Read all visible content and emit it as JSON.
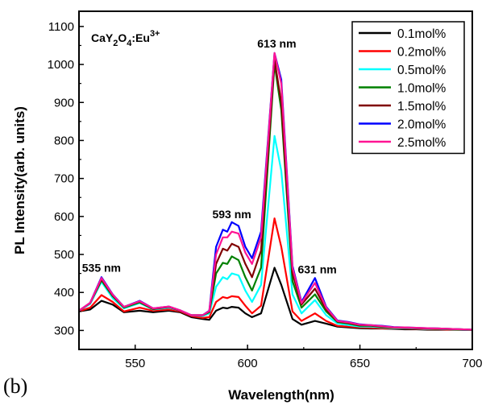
{
  "chart_data": {
    "type": "line",
    "panel_label": "(b)",
    "compound": {
      "parts": [
        "CaY",
        "2",
        "O",
        "4",
        ":Eu",
        "3+"
      ]
    },
    "xlabel": "Wavelength(nm)",
    "ylabel": "PL Intensity(arb. units)",
    "xlim": [
      525,
      700
    ],
    "ylim": [
      250,
      1140
    ],
    "xticks": [
      550,
      600,
      650,
      700
    ],
    "yticks": [
      300,
      400,
      500,
      600,
      700,
      800,
      900,
      1000,
      1100
    ],
    "grid": false,
    "legend_position": "top-right",
    "annotations": [
      {
        "text": "535 nm",
        "x": 535,
        "y": 455
      },
      {
        "text": "593 nm",
        "x": 593,
        "y": 595
      },
      {
        "text": "613 nm",
        "x": 613,
        "y": 1045
      },
      {
        "text": "631 nm",
        "x": 631,
        "y": 450
      }
    ],
    "series": [
      {
        "name": "0.1mol%",
        "color": "#000000",
        "values": [
          350,
          355,
          378,
          368,
          348,
          352,
          348,
          352,
          348,
          335,
          330,
          328,
          352,
          360,
          358,
          362,
          360,
          345,
          335,
          345,
          465,
          420,
          330,
          315,
          325,
          318,
          310,
          308,
          306,
          305,
          305,
          304,
          303,
          303,
          302,
          302,
          302,
          302,
          301
        ]
      },
      {
        "name": "0.2mol%",
        "color": "#ff0000",
        "values": [
          350,
          360,
          393,
          375,
          350,
          360,
          352,
          355,
          350,
          338,
          333,
          335,
          375,
          388,
          385,
          390,
          388,
          365,
          345,
          365,
          595,
          520,
          350,
          325,
          345,
          325,
          312,
          310,
          308,
          307,
          306,
          305,
          305,
          304,
          303,
          303,
          302,
          302,
          301
        ]
      },
      {
        "name": "0.5mol%",
        "color": "#00ffff",
        "values": [
          352,
          370,
          428,
          385,
          358,
          372,
          355,
          360,
          352,
          340,
          338,
          345,
          415,
          440,
          435,
          450,
          445,
          405,
          375,
          420,
          812,
          720,
          395,
          345,
          380,
          340,
          318,
          314,
          310,
          310,
          308,
          306,
          306,
          305,
          304,
          304,
          303,
          302,
          301
        ]
      },
      {
        "name": "1.0mol%",
        "color": "#008000",
        "values": [
          352,
          372,
          432,
          390,
          360,
          374,
          356,
          362,
          352,
          340,
          340,
          348,
          450,
          478,
          475,
          495,
          485,
          440,
          405,
          465,
          1002,
          880,
          430,
          360,
          395,
          350,
          322,
          318,
          312,
          312,
          309,
          307,
          307,
          306,
          305,
          304,
          303,
          302,
          301
        ]
      },
      {
        "name": "1.5mol%",
        "color": "#800000",
        "values": [
          352,
          372,
          435,
          392,
          362,
          376,
          357,
          362,
          352,
          340,
          340,
          350,
          475,
          515,
          510,
          528,
          520,
          475,
          440,
          510,
          1012,
          900,
          450,
          368,
          410,
          355,
          324,
          320,
          314,
          313,
          310,
          308,
          307,
          306,
          305,
          305,
          304,
          303,
          302
        ]
      },
      {
        "name": "2.0mol%",
        "color": "#0000ff",
        "values": [
          352,
          373,
          440,
          395,
          362,
          378,
          358,
          363,
          353,
          340,
          340,
          352,
          520,
          565,
          560,
          585,
          575,
          520,
          490,
          560,
          1030,
          960,
          470,
          375,
          438,
          362,
          326,
          322,
          316,
          314,
          312,
          309,
          308,
          307,
          306,
          305,
          304,
          303,
          302
        ]
      },
      {
        "name": "2.5mol%",
        "color": "#ff1493",
        "values": [
          352,
          373,
          438,
          394,
          362,
          377,
          358,
          363,
          353,
          340,
          340,
          351,
          500,
          545,
          545,
          560,
          555,
          505,
          475,
          545,
          1030,
          950,
          465,
          372,
          425,
          360,
          325,
          321,
          315,
          314,
          311,
          308,
          308,
          307,
          306,
          305,
          304,
          303,
          302
        ]
      }
    ],
    "x": [
      525,
      530,
      535,
      540,
      545,
      552,
      558,
      565,
      570,
      575,
      580,
      583,
      586,
      589,
      591,
      593,
      596,
      599,
      602,
      606,
      612,
      615,
      620,
      624,
      630,
      635,
      640,
      645,
      650,
      655,
      660,
      665,
      670,
      675,
      680,
      685,
      690,
      695,
      700
    ]
  }
}
